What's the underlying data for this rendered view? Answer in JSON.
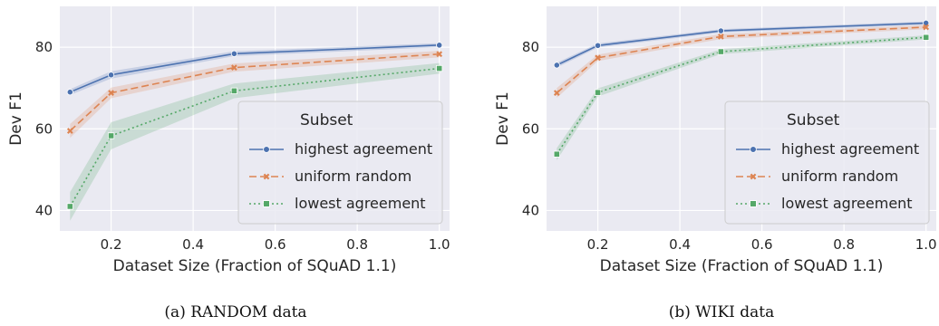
{
  "chart_data": [
    {
      "type": "line",
      "xlabel": "Dataset Size (Fraction of SQuAD 1.1)",
      "ylabel": "Dev F1",
      "xlim": [
        0.075,
        1.025
      ],
      "ylim": [
        35,
        90
      ],
      "xticks": [
        0.2,
        0.4,
        0.6,
        0.8,
        1.0
      ],
      "xtick_labels": [
        "0.2",
        "0.4",
        "0.6",
        "0.8",
        "1.0"
      ],
      "yticks": [
        40,
        60,
        80
      ],
      "ytick_labels": [
        "40",
        "60",
        "80"
      ],
      "grid": true,
      "legend_placement": "lower-right",
      "legend_title": "Subset",
      "x": [
        0.1,
        0.2,
        0.5,
        1.0
      ],
      "series": [
        {
          "name": "highest agreement",
          "values": [
            69,
            73.2,
            78.4,
            80.5
          ],
          "ci_low": [
            68.3,
            72.3,
            77.8,
            80.0
          ],
          "ci_high": [
            69.7,
            74.1,
            79.0,
            81.0
          ],
          "color": "#4c72b0",
          "dash": "solid",
          "marker": "circle"
        },
        {
          "name": "uniform random",
          "values": [
            59.5,
            68.8,
            75,
            78.3
          ],
          "ci_low": [
            57.8,
            67.5,
            74.0,
            77.5
          ],
          "ci_high": [
            61.2,
            70.1,
            76.0,
            79.1
          ],
          "color": "#dd8452",
          "dash": "dashed",
          "marker": "x"
        },
        {
          "name": "lowest agreement",
          "values": [
            41,
            58.3,
            69.3,
            74.8
          ],
          "ci_low": [
            37.5,
            55.0,
            67.5,
            73.5
          ],
          "ci_high": [
            44.5,
            61.6,
            71.1,
            76.1
          ],
          "color": "#55a868",
          "dash": "dotted",
          "marker": "square"
        }
      ],
      "caption_label": "(a) ",
      "caption_name": "RANDOM",
      "caption_rest": " data"
    },
    {
      "type": "line",
      "xlabel": "Dataset Size (Fraction of SQuAD 1.1)",
      "ylabel": "Dev F1",
      "xlim": [
        0.075,
        1.025
      ],
      "ylim": [
        35,
        90
      ],
      "xticks": [
        0.2,
        0.4,
        0.6,
        0.8,
        1.0
      ],
      "xtick_labels": [
        "0.2",
        "0.4",
        "0.6",
        "0.8",
        "1.0"
      ],
      "yticks": [
        40,
        60,
        80
      ],
      "ytick_labels": [
        "40",
        "60",
        "80"
      ],
      "grid": true,
      "legend_placement": "lower-right",
      "legend_title": "Subset",
      "x": [
        0.1,
        0.2,
        0.5,
        1.0
      ],
      "series": [
        {
          "name": "highest agreement",
          "values": [
            75.6,
            80.4,
            84,
            85.9
          ],
          "ci_low": [
            75.0,
            79.9,
            83.6,
            85.5
          ],
          "ci_high": [
            76.2,
            80.9,
            84.4,
            86.3
          ],
          "color": "#4c72b0",
          "dash": "solid",
          "marker": "circle"
        },
        {
          "name": "uniform random",
          "values": [
            68.8,
            77.4,
            82.6,
            84.9
          ],
          "ci_low": [
            67.6,
            76.6,
            82.0,
            84.4
          ],
          "ci_high": [
            70.0,
            78.2,
            83.2,
            85.4
          ],
          "color": "#dd8452",
          "dash": "dashed",
          "marker": "x"
        },
        {
          "name": "lowest agreement",
          "values": [
            53.8,
            68.9,
            78.9,
            82.4
          ],
          "ci_low": [
            52.3,
            67.9,
            78.3,
            81.9
          ],
          "ci_high": [
            55.3,
            69.9,
            79.5,
            82.9
          ],
          "color": "#55a868",
          "dash": "dotted",
          "marker": "square"
        }
      ],
      "caption_label": "(b) ",
      "caption_name": "WIKI",
      "caption_rest": " data"
    }
  ]
}
